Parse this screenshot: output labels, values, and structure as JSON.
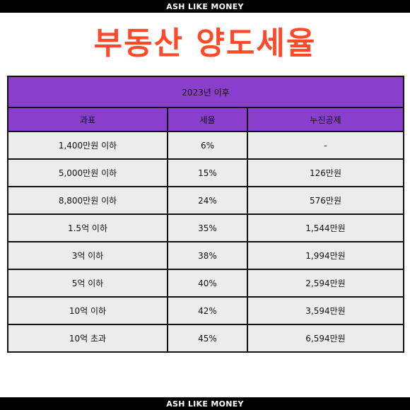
{
  "banner_top": "ASH LIKE MONEY",
  "title": "부동산 양도세율",
  "table": {
    "period": "2023년 이후",
    "columns": [
      "과표",
      "세율",
      "누진공제"
    ],
    "rows": [
      {
        "base": "1,400만원 이하",
        "rate": "6%",
        "deduction": "-"
      },
      {
        "base": "5,000만원 이하",
        "rate": "15%",
        "deduction": "126만원"
      },
      {
        "base": "8,800만원 이하",
        "rate": "24%",
        "deduction": "576만원"
      },
      {
        "base": "1.5억 이하",
        "rate": "35%",
        "deduction": "1,544만원"
      },
      {
        "base": "3억 이하",
        "rate": "38%",
        "deduction": "1,994만원"
      },
      {
        "base": "5억 이하",
        "rate": "40%",
        "deduction": "2,594만원"
      },
      {
        "base": "10억 이하",
        "rate": "42%",
        "deduction": "3,594만원"
      },
      {
        "base": "10억 초과",
        "rate": "45%",
        "deduction": "6,594만원"
      }
    ]
  },
  "banner_bottom": "ASH LIKE MONEY",
  "colors": {
    "title": "#ff4a2a",
    "header": "#8a3fcc",
    "row": "#ececec",
    "banner": "#000000"
  }
}
